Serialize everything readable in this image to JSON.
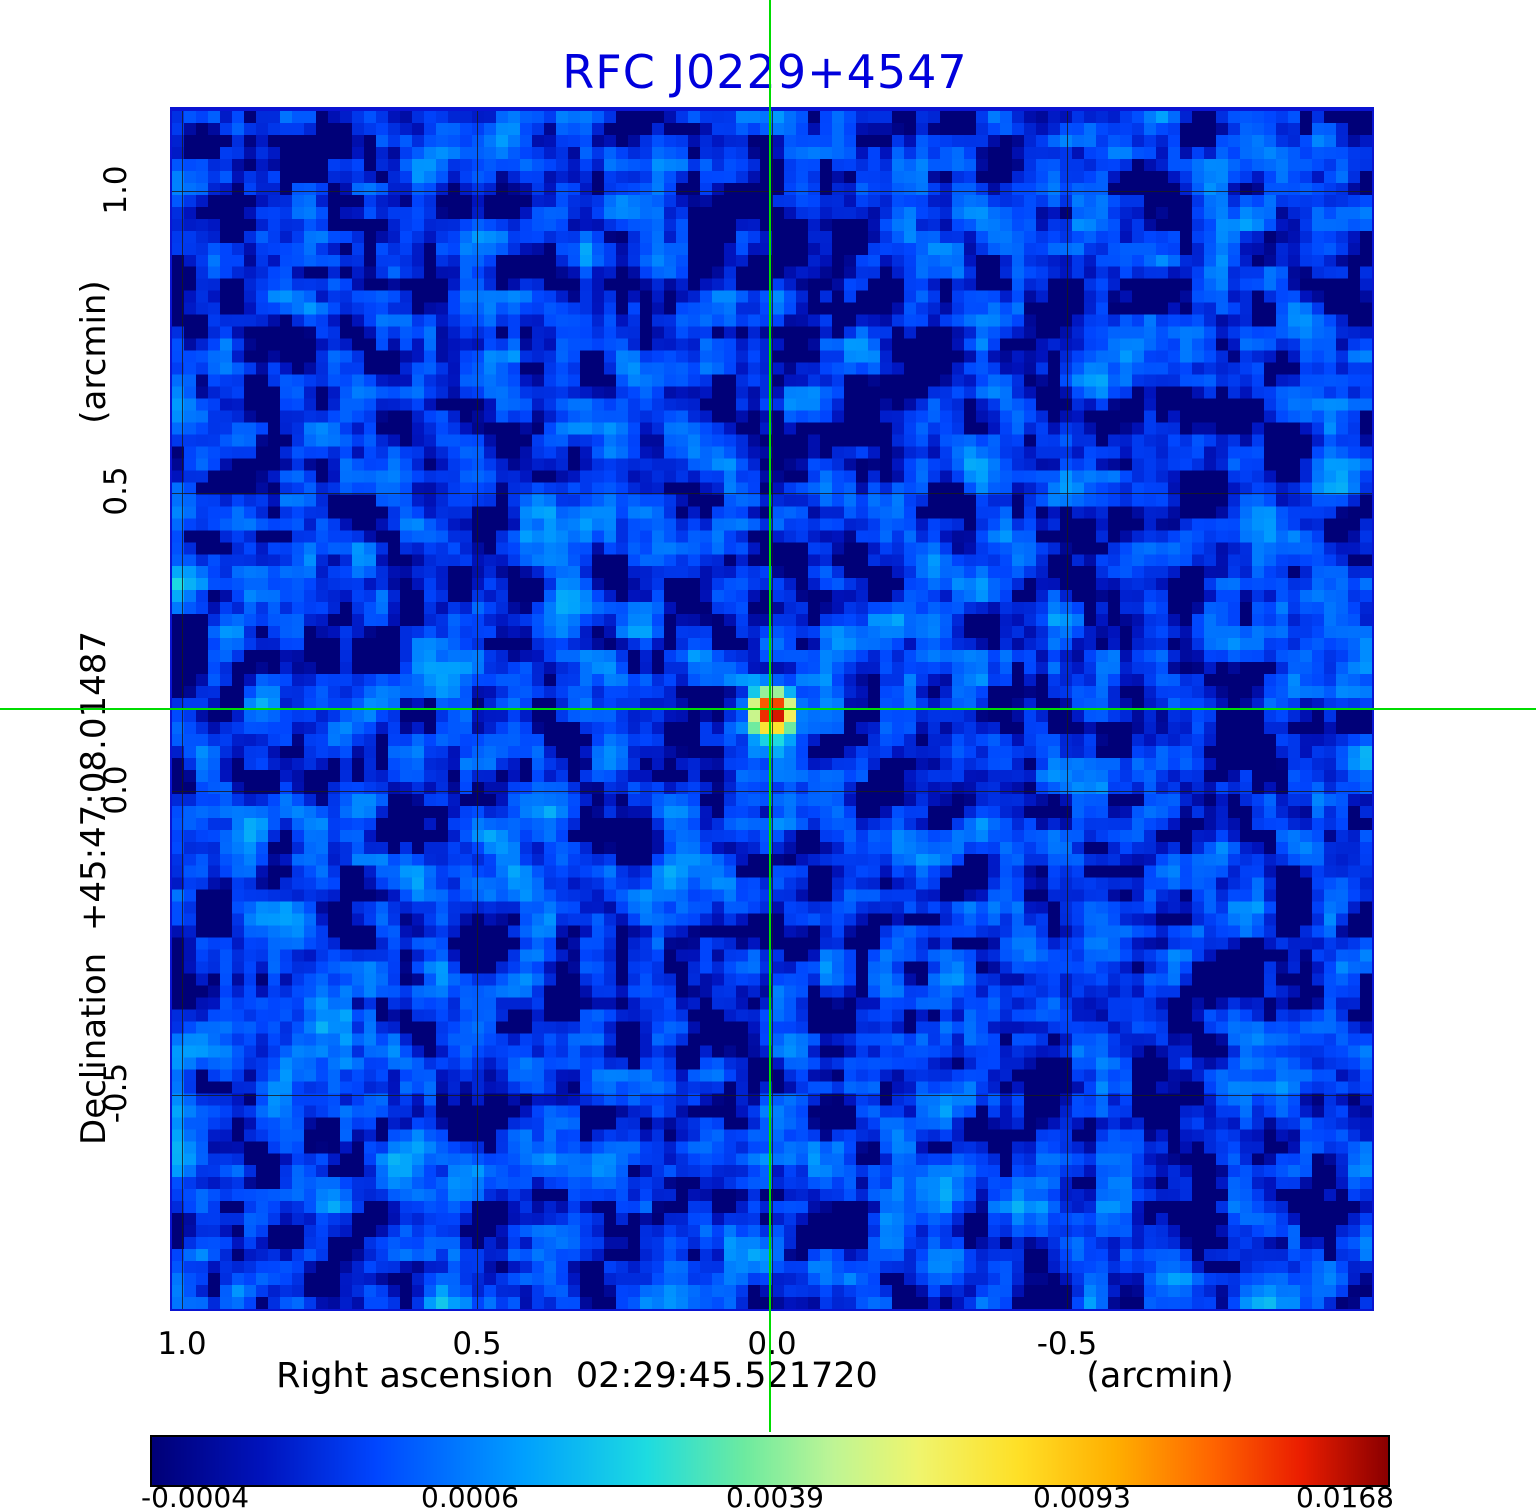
{
  "title": "RFC J0229+4547",
  "colors": {
    "title": "#0000dc",
    "frame": "#0a14d2",
    "crosshair": "#00dc00",
    "grid": "#1a1a1a"
  },
  "y_axis": {
    "unit_label": "(arcmin)",
    "axis_label": "Declination  +45:47:08.01487",
    "ticks": [
      "1.0",
      "0.5",
      "0.0",
      "-0.5"
    ]
  },
  "x_axis": {
    "axis_label": "Right ascension  02:29:45.521720",
    "unit_label": "(arcmin)",
    "ticks": [
      "1.0",
      "0.5",
      "0.0",
      "-0.5"
    ]
  },
  "colorbar": {
    "tick_labels": [
      "-0.0004",
      "0.0006",
      "0.0039",
      "0.0093",
      "0.0168"
    ]
  },
  "chart_data": {
    "type": "heatmap",
    "title": "RFC J0229+4547",
    "xlabel": "Right ascension 02:29:45.521720 (arcmin)",
    "ylabel": "Declination +45:47:08.01487 (arcmin)",
    "x_range": [
      1.02,
      -1.017
    ],
    "y_range": [
      -0.864,
      1.136
    ],
    "axis_ticks_arcmin": [
      1.0,
      0.5,
      0.0,
      -0.5
    ],
    "grid": true,
    "scale": "sqrt",
    "vmin": -0.0004,
    "vmax": 0.0168,
    "colorbar_tick_values": [
      -0.0004,
      0.0006,
      0.0039,
      0.0093,
      0.0168
    ],
    "noise_rms": 0.00045,
    "source": {
      "x_arcmin": 0.0,
      "y_arcmin": 0.133,
      "peak_value": 0.0168,
      "sigma_arcmin": 0.022
    },
    "crosshair_arcmin": [
      0.0,
      0.133
    ],
    "grid_cells": 100,
    "random_seed": 1234,
    "colormap_stops": [
      [
        0.0,
        "#000078"
      ],
      [
        0.09,
        "#0014be"
      ],
      [
        0.18,
        "#0046ff"
      ],
      [
        0.3,
        "#00a0ff"
      ],
      [
        0.4,
        "#1edce1"
      ],
      [
        0.48,
        "#6eeba0"
      ],
      [
        0.55,
        "#bef596"
      ],
      [
        0.62,
        "#f0f56e"
      ],
      [
        0.7,
        "#ffe128"
      ],
      [
        0.78,
        "#ffaf00"
      ],
      [
        0.86,
        "#ff6400"
      ],
      [
        0.93,
        "#eb1e00"
      ],
      [
        1.0,
        "#8c0000"
      ]
    ]
  }
}
